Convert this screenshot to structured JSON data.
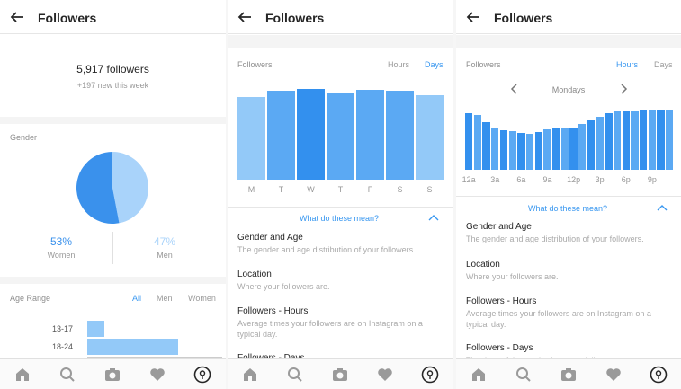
{
  "colors": {
    "accent": "#3897f0",
    "bar_dark": "#3390ee",
    "bar_mid": "#5ba9f3",
    "bar_light": "#93c9f8",
    "women": "#3a91ec",
    "men": "#a9d3fa"
  },
  "panel1": {
    "header_title": "Followers",
    "followers_count": "5,917 followers",
    "new_this_week": "+197 new this week",
    "gender_label": "Gender",
    "women_pct": "53%",
    "women_label": "Women",
    "men_pct": "47%",
    "men_label": "Men",
    "age_range_label": "Age Range",
    "age_filters": [
      "All",
      "Men",
      "Women"
    ],
    "age_rows": [
      "13-17",
      "18-24"
    ]
  },
  "panel2": {
    "header_title": "Followers",
    "section_label": "Followers",
    "toggle_hours": "Hours",
    "toggle_days": "Days",
    "what_mean": "What do these mean?",
    "items": [
      {
        "heading": "Gender and Age",
        "desc": "The gender and age distribution of your followers."
      },
      {
        "heading": "Location",
        "desc": "Where your followers are."
      },
      {
        "heading": "Followers - Hours",
        "desc": "Average times your followers are on Instagram on a typical day."
      },
      {
        "heading": "Followers - Days",
        "desc": ""
      }
    ]
  },
  "panel3": {
    "header_title": "Followers",
    "section_label": "Followers",
    "toggle_hours": "Hours",
    "toggle_days": "Days",
    "day_selector": "Mondays",
    "what_mean": "What do these mean?",
    "items": [
      {
        "heading": "Gender and Age",
        "desc": "The gender and age distribution of your followers."
      },
      {
        "heading": "Location",
        "desc": "Where your followers are."
      },
      {
        "heading": "Followers - Hours",
        "desc": "Average times your followers are on Instagram on a typical day."
      },
      {
        "heading": "Followers - Days",
        "desc": "The days of the week when your followers are most"
      }
    ]
  },
  "tab_icons": [
    "home-icon",
    "search-icon",
    "camera-icon",
    "heart-icon",
    "profile-icon"
  ],
  "chart_data": [
    {
      "type": "bar",
      "chart": "age-range",
      "categories": [
        "13-17",
        "18-24"
      ],
      "values": [
        6,
        32
      ],
      "xlim": [
        0,
        100
      ],
      "ylabel": "",
      "xlabel": ""
    },
    {
      "type": "bar",
      "chart": "followers-days",
      "categories": [
        "M",
        "T",
        "W",
        "T",
        "F",
        "S",
        "S"
      ],
      "values": [
        92,
        99,
        101,
        97,
        100,
        99,
        94
      ],
      "ylim": [
        0,
        105
      ],
      "highlight_index": 2
    },
    {
      "type": "bar",
      "chart": "followers-hours",
      "categories": [
        "12a",
        "",
        "",
        "3a",
        "",
        "",
        "6a",
        "",
        "",
        "9a",
        "",
        "",
        "12p",
        "",
        "",
        "3p",
        "",
        "",
        "6p",
        "",
        "",
        "9p",
        "",
        ""
      ],
      "tick_labels": [
        "12a",
        "3a",
        "6a",
        "9a",
        "12p",
        "3p",
        "6p",
        "9p"
      ],
      "values": [
        95,
        92,
        80,
        70,
        66,
        65,
        62,
        60,
        63,
        67,
        69,
        69,
        70,
        76,
        82,
        88,
        94,
        98,
        97,
        98,
        101,
        100,
        101,
        100
      ],
      "ylim": [
        0,
        105
      ]
    }
  ]
}
